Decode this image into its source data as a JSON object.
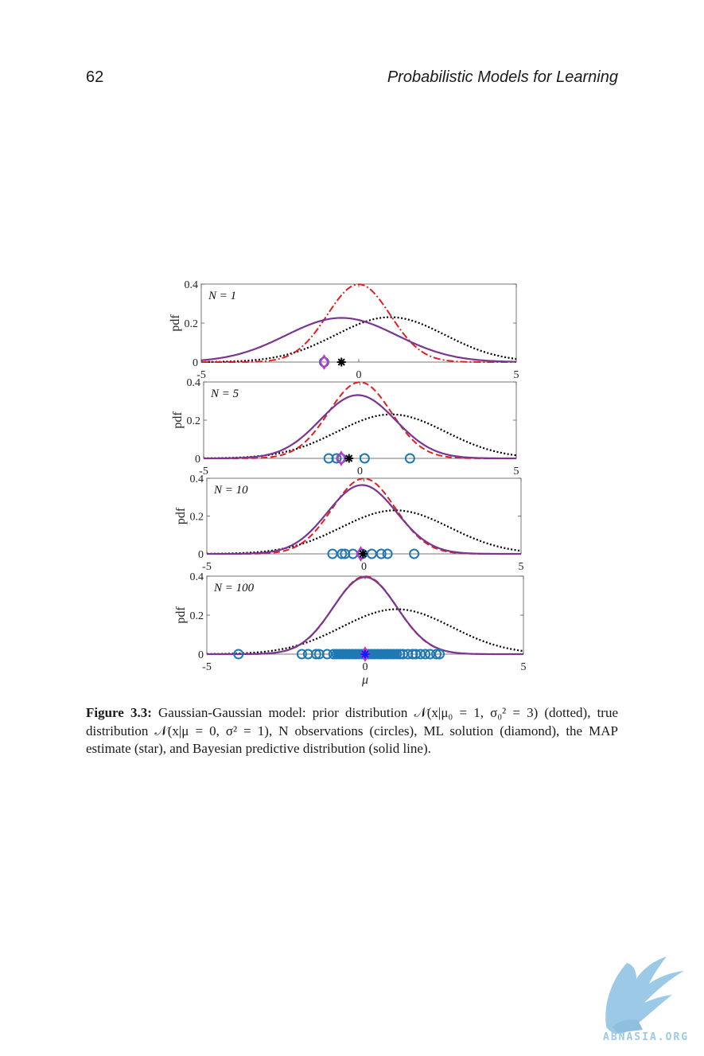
{
  "header": {
    "page_number": "62",
    "running_title": "Probabilistic Models for Learning"
  },
  "figure": {
    "chart_data": {
      "type": "line",
      "xlabel": "μ",
      "ylabel": "pdf",
      "xlim": [
        -5,
        5
      ],
      "ylim": [
        0,
        0.4
      ],
      "xticks": [
        "-5",
        "0",
        "5"
      ],
      "yticks": [
        "0",
        "0.2",
        "0.4"
      ],
      "grid": false,
      "prior": {
        "mean": 1,
        "variance": 3
      },
      "truth": {
        "mean": 0,
        "variance": 1
      },
      "panels": [
        {
          "label": "N = 1",
          "observations": [
            -1.1
          ],
          "ml": -1.1,
          "map": -0.55,
          "predictive": {
            "mean": -0.55,
            "variance": 3.1
          }
        },
        {
          "label": "N = 5",
          "observations": [
            -1.0,
            -0.75,
            -0.6,
            0.15,
            1.6
          ],
          "ml": -0.6,
          "map": -0.35,
          "predictive": {
            "mean": -0.07,
            "variance": 1.45
          }
        },
        {
          "label": "N = 10",
          "observations": [
            -1.0,
            -0.7,
            -0.6,
            -0.35,
            -0.05,
            0.25,
            0.55,
            0.75,
            1.6
          ],
          "ml": -0.1,
          "map": -0.03,
          "predictive": {
            "mean": -0.06,
            "variance": 1.2
          }
        },
        {
          "label": "N = 100",
          "observations": [
            -4.0,
            -2.0,
            -1.8,
            -1.55,
            -1.45,
            -1.2,
            -1.0,
            -0.9,
            -0.8,
            -0.7,
            -0.6,
            -0.5,
            -0.4,
            -0.3,
            -0.2,
            -0.1,
            0.0,
            0.1,
            0.2,
            0.3,
            0.4,
            0.5,
            0.6,
            0.7,
            0.8,
            0.9,
            1.0,
            1.1,
            1.2,
            1.35,
            1.5,
            1.6,
            1.75,
            1.9,
            2.05,
            2.25,
            2.35
          ],
          "ml": 0.0,
          "map": 0.0,
          "predictive": {
            "mean": 0.0,
            "variance": 1.02
          }
        }
      ]
    },
    "colors": {
      "prior": "#000000",
      "truth": "#e02020",
      "predictive": "#7a3591",
      "observation": "#1f77b4",
      "ml": "#cc33cc",
      "map_first": "#000000",
      "map_last": "#1a1aff"
    }
  },
  "caption": {
    "label": "Figure 3.3:",
    "text": " Gaussian-Gaussian model: prior distribution 𝒩(x|μ₀ = 1, σ₀² = 3) (dotted), true distribution 𝒩(x|μ = 0, σ² = 1), N observations (circles), ML solution (diamond), the MAP estimate (star), and Bayesian predictive distribution (solid line)."
  },
  "watermark": {
    "text": "ABNASIA.ORG"
  }
}
